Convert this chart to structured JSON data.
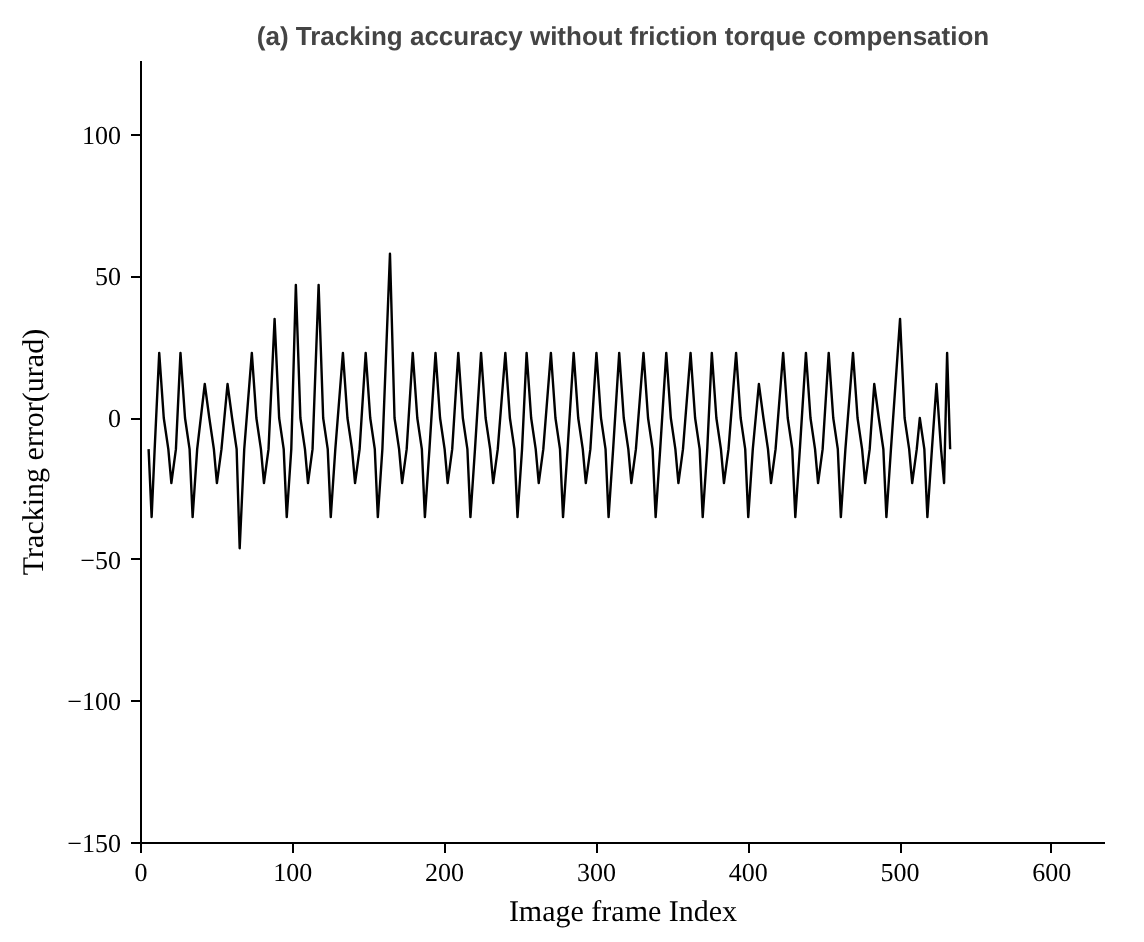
{
  "chart_data": {
    "type": "line",
    "title": "(a) Tracking accuracy without friction torque compensation",
    "xlabel": "Image frame Index",
    "ylabel": "Tracking error(urad)",
    "x": [
      5,
      7,
      9,
      12,
      15,
      18,
      20,
      23,
      26,
      29,
      32,
      34,
      37,
      42,
      45,
      48,
      50,
      53,
      57,
      60,
      63,
      65,
      68,
      73,
      76,
      79,
      81,
      84,
      88,
      91,
      94,
      96,
      99,
      102,
      105,
      108,
      110,
      113,
      117,
      120,
      123,
      125,
      128,
      133,
      136,
      139,
      141,
      144,
      148,
      151,
      154,
      156,
      159,
      164,
      167,
      170,
      172,
      175,
      179,
      182,
      185,
      187,
      190,
      194,
      197,
      200,
      202,
      205,
      209,
      212,
      215,
      217,
      220,
      224,
      227,
      230,
      232,
      235,
      240,
      243,
      246,
      248,
      251,
      254,
      257,
      260,
      262,
      265,
      270,
      273,
      276,
      278,
      281,
      285,
      288,
      291,
      293,
      296,
      300,
      303,
      306,
      308,
      311,
      315,
      318,
      321,
      323,
      326,
      331,
      334,
      337,
      339,
      342,
      346,
      349,
      352,
      354,
      357,
      362,
      365,
      368,
      370,
      373,
      376,
      379,
      382,
      384,
      387,
      392,
      395,
      398,
      400,
      403,
      407,
      410,
      413,
      415,
      418,
      423,
      426,
      429,
      431,
      434,
      438,
      441,
      444,
      446,
      449,
      453,
      456,
      459,
      461,
      464,
      469,
      472,
      475,
      477,
      480,
      483,
      486,
      489,
      491,
      494,
      500,
      503,
      506,
      508,
      511,
      513,
      516,
      518,
      521,
      524,
      527,
      529,
      531,
      533
    ],
    "series": [
      {
        "color": "#000000",
        "values": [
          -11,
          -35,
          -11,
          23,
          0,
          -11,
          -23,
          -11,
          23,
          0,
          -11,
          -35,
          -11,
          12,
          0,
          -11,
          -23,
          -11,
          12,
          0,
          -11,
          -46,
          -11,
          23,
          0,
          -11,
          -23,
          -11,
          35,
          0,
          -11,
          -35,
          -11,
          47,
          0,
          -11,
          -23,
          -11,
          47,
          0,
          -11,
          -35,
          -11,
          23,
          0,
          -11,
          -23,
          -11,
          23,
          0,
          -11,
          -35,
          -11,
          58,
          0,
          -11,
          -23,
          -11,
          23,
          0,
          -11,
          -35,
          -11,
          23,
          0,
          -11,
          -23,
          -11,
          23,
          0,
          -11,
          -35,
          -11,
          23,
          0,
          -11,
          -23,
          -11,
          23,
          0,
          -11,
          -35,
          -11,
          23,
          0,
          -11,
          -23,
          -11,
          23,
          0,
          -11,
          -35,
          -11,
          23,
          0,
          -11,
          -23,
          -11,
          23,
          0,
          -11,
          -35,
          -11,
          23,
          0,
          -11,
          -23,
          -11,
          23,
          0,
          -11,
          -35,
          -11,
          23,
          0,
          -11,
          -23,
          -11,
          23,
          0,
          -11,
          -35,
          -11,
          23,
          0,
          -11,
          -23,
          -11,
          23,
          0,
          -11,
          -35,
          -11,
          12,
          0,
          -11,
          -23,
          -11,
          23,
          0,
          -11,
          -35,
          -11,
          23,
          0,
          -11,
          -23,
          -11,
          23,
          0,
          -11,
          -35,
          -11,
          23,
          0,
          -11,
          -23,
          -11,
          12,
          0,
          -11,
          -35,
          -11,
          35,
          0,
          -11,
          -23,
          -11,
          0,
          -11,
          -35,
          -11,
          12,
          -11,
          -23,
          23,
          -11
        ]
      }
    ],
    "xlim": [
      0,
      635
    ],
    "ylim": [
      -150,
      126
    ],
    "xticks": [
      0,
      100,
      200,
      300,
      400,
      500,
      600
    ],
    "yticks": [
      -150,
      -100,
      -50,
      0,
      50,
      100
    ],
    "marker": "none",
    "line_style": "solid"
  }
}
